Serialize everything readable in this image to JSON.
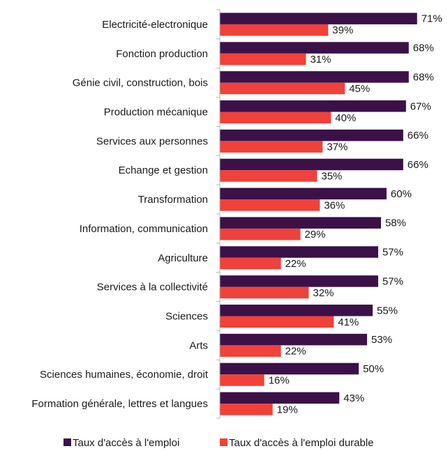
{
  "chart_data": {
    "type": "bar",
    "orientation": "horizontal",
    "categories": [
      "Electricité-electronique",
      "Fonction production",
      "Génie civil, construction, bois",
      "Production mécanique",
      "Services aux personnes",
      "Echange et gestion",
      "Transformation",
      "Information, communication",
      "Agriculture",
      "Services à la collectivité",
      "Sciences",
      "Arts",
      "Sciences humaines, économie, droit",
      "Formation générale, lettres et langues"
    ],
    "series": [
      {
        "name": "Taux d'accès à l'emploi",
        "color": "#3b1148",
        "values": [
          71,
          68,
          68,
          67,
          66,
          66,
          60,
          58,
          57,
          57,
          55,
          53,
          50,
          43
        ],
        "labels": [
          "71%",
          "68%",
          "68%",
          "67%",
          "66%",
          "66%",
          "60%",
          "58%",
          "57%",
          "57%",
          "55%",
          "53%",
          "50%",
          "43%"
        ]
      },
      {
        "name": "Taux d'accès à l'emploi durable",
        "color": "#f0413a",
        "values": [
          39,
          31,
          45,
          40,
          37,
          35,
          36,
          29,
          22,
          32,
          41,
          22,
          16,
          19
        ],
        "labels": [
          "39%",
          "31%",
          "45%",
          "40%",
          "37%",
          "35%",
          "36%",
          "29%",
          "22%",
          "32%",
          "41%",
          "22%",
          "16%",
          "19%"
        ]
      }
    ],
    "xlim": [
      0,
      75
    ],
    "unit": "%",
    "grid": false,
    "legend": "bottom"
  }
}
